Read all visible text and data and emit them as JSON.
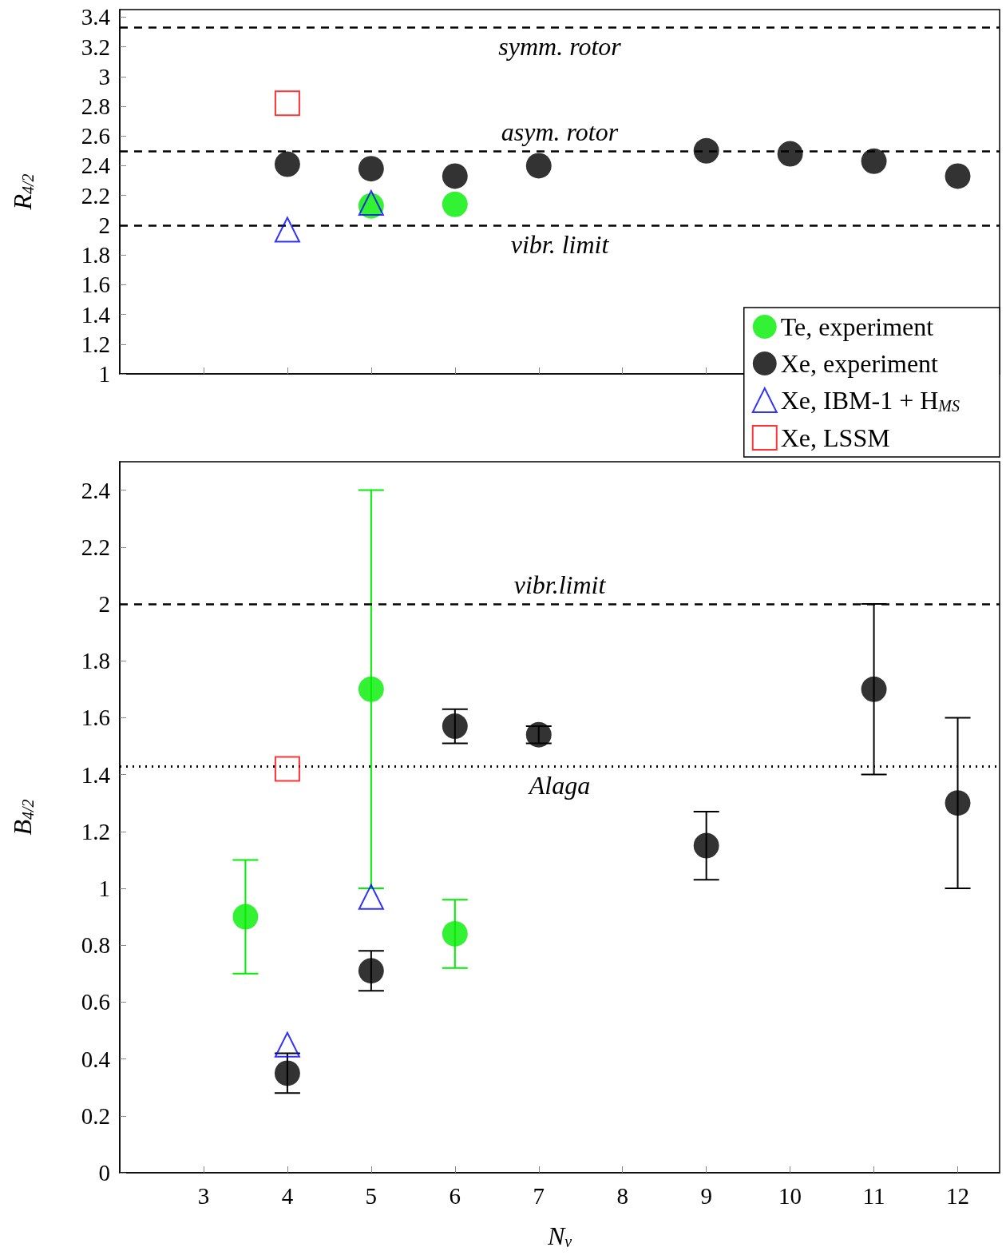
{
  "chart_data": [
    {
      "type": "scatter",
      "ylabel": "R$_{4/2}$",
      "xlim": [
        2,
        12.5
      ],
      "xticks": [
        3,
        4,
        5,
        6,
        7,
        8,
        9,
        10,
        11,
        12
      ],
      "ylim": [
        1,
        3.45
      ],
      "yticks": [
        1,
        1.2,
        1.4,
        1.6,
        1.8,
        2,
        2.2,
        2.4,
        2.6,
        2.8,
        3,
        3.2,
        3.4
      ],
      "tick_labels": "y",
      "grid": false,
      "legend": "bottom right",
      "series": [
        {
          "name": "Te, experiment",
          "color": "#00ee00",
          "marker": "circle",
          "x": [
            5,
            6
          ],
          "values": [
            2.13,
            2.14
          ]
        },
        {
          "name": "Xe, experiment",
          "color": "#000000",
          "marker": "circle",
          "x": [
            4,
            5,
            6,
            7,
            9,
            10,
            11,
            12
          ],
          "values": [
            2.41,
            2.38,
            2.33,
            2.4,
            2.5,
            2.48,
            2.43,
            2.33
          ]
        },
        {
          "name": "Xe, IBM-1 + H$_{MS}$",
          "color": "#0000ff",
          "marker": "triangle",
          "x": [
            4,
            5
          ],
          "values": [
            1.97,
            2.15
          ]
        },
        {
          "name": "Xe, LSSM",
          "color": "#ff0000",
          "marker": "square",
          "x": [
            4
          ],
          "values": [
            2.82
          ]
        }
      ],
      "ref_lines": [
        {
          "axis": "y",
          "value": 3.33,
          "label": "symm. rotor",
          "line_style": "dashed",
          "color": "#000000"
        },
        {
          "axis": "y",
          "value": 2.5,
          "label": "asym. rotor",
          "line_style": "dashed",
          "color": "#000000"
        },
        {
          "axis": "y",
          "value": 2,
          "label": "vibr. limit",
          "line_style": "dashed",
          "color": "#000000"
        }
      ]
    },
    {
      "type": "scatter",
      "xlabel": "N$_{ν}$",
      "ylabel": "B$_{4/2}$",
      "xlim": [
        2,
        12.5
      ],
      "xticks": [
        3,
        4,
        5,
        6,
        7,
        8,
        9,
        10,
        11,
        12
      ],
      "ylim": [
        0,
        2.5
      ],
      "yticks": [
        0,
        0.2,
        0.4,
        0.6,
        0.8,
        1,
        1.2,
        1.4,
        1.6,
        1.8,
        2,
        2.2,
        2.4
      ],
      "grid": false,
      "legend": false,
      "series": [
        {
          "color": "#00ee00",
          "marker": "circle",
          "x": [
            3.5,
            5,
            6
          ],
          "values": [
            0.9,
            1.7,
            0.84
          ],
          "errors": [
            0.2,
            0.7,
            0.12
          ]
        },
        {
          "color": "#000000",
          "marker": "circle",
          "x": [
            4,
            5,
            6,
            7,
            9,
            11,
            12
          ],
          "values": [
            0.35,
            0.71,
            1.57,
            1.54,
            1.15,
            1.7,
            1.3
          ],
          "errors": [
            0.07,
            0.07,
            0.06,
            0.03,
            0.12,
            0.3,
            0.3
          ]
        },
        {
          "color": "#0000ff",
          "marker": "triangle",
          "x": [
            4,
            5
          ],
          "values": [
            0.45,
            0.97
          ]
        },
        {
          "color": "#ff0000",
          "marker": "square",
          "x": [
            4
          ],
          "values": [
            1.42
          ]
        }
      ],
      "ref_lines": [
        {
          "axis": "y",
          "value": 2,
          "label": "vibr.limit",
          "line_style": "dashed",
          "color": "#000000"
        },
        {
          "axis": "y",
          "value": 1.43,
          "label": "Alaga",
          "line_style": "dotted",
          "color": "#000000"
        }
      ]
    }
  ]
}
